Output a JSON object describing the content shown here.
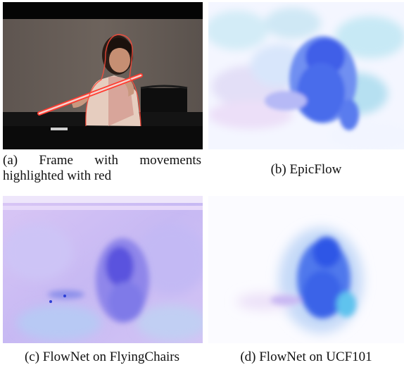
{
  "figure": {
    "panels": [
      {
        "id": "a",
        "caption_line1": "(a) Frame with movements",
        "caption_line2": "highlighted with red"
      },
      {
        "id": "b",
        "caption": "(b) EpicFlow"
      },
      {
        "id": "c",
        "caption": "(c) FlowNet on FlyingChairs"
      },
      {
        "id": "d",
        "caption": "(d) FlowNet on UCF101"
      }
    ]
  }
}
